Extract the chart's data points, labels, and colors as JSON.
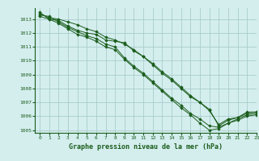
{
  "title": "Graphe pression niveau de la mer (hPa)",
  "background_color": "#d4eeee",
  "grid_color": "#aacccc",
  "line_color": "#1a5c1a",
  "marker_color": "#1a5c1a",
  "xlim": [
    -0.5,
    23
  ],
  "ylim": [
    1004.8,
    1013.8
  ],
  "yticks": [
    1005,
    1006,
    1007,
    1008,
    1009,
    1010,
    1011,
    1012,
    1013
  ],
  "xticks": [
    0,
    1,
    2,
    3,
    4,
    5,
    6,
    7,
    8,
    9,
    10,
    11,
    12,
    13,
    14,
    15,
    16,
    17,
    18,
    19,
    20,
    21,
    22,
    23
  ],
  "series": [
    [
      1013.4,
      1013.1,
      1013.0,
      1012.8,
      1012.6,
      1012.3,
      1012.1,
      1011.7,
      1011.5,
      1011.2,
      1010.8,
      1010.3,
      1009.8,
      1009.2,
      1008.7,
      1008.1,
      1007.5,
      1007.0,
      1006.4,
      1005.4,
      1005.8,
      1005.9,
      1006.3,
      1006.3
    ],
    [
      1013.2,
      1013.0,
      1012.9,
      1012.5,
      1012.2,
      1012.0,
      1011.9,
      1011.5,
      1011.4,
      1011.3,
      1010.7,
      1010.3,
      1009.7,
      1009.1,
      1008.6,
      1008.0,
      1007.4,
      1007.0,
      1006.5,
      1005.3,
      1005.7,
      1005.9,
      1006.2,
      1006.3
    ],
    [
      1013.3,
      1013.2,
      1012.8,
      1012.4,
      1012.1,
      1011.8,
      1011.6,
      1011.2,
      1011.0,
      1010.2,
      1009.6,
      1009.1,
      1008.5,
      1007.9,
      1007.3,
      1006.8,
      1006.2,
      1005.8,
      1005.3,
      1005.2,
      1005.5,
      1005.8,
      1006.1,
      1006.2
    ],
    [
      1013.5,
      1013.0,
      1012.7,
      1012.3,
      1011.9,
      1011.7,
      1011.4,
      1011.0,
      1010.8,
      1010.1,
      1009.5,
      1009.0,
      1008.4,
      1007.8,
      1007.2,
      1006.6,
      1006.1,
      1005.5,
      1005.0,
      1005.1,
      1005.5,
      1005.7,
      1006.0,
      1006.1
    ]
  ]
}
